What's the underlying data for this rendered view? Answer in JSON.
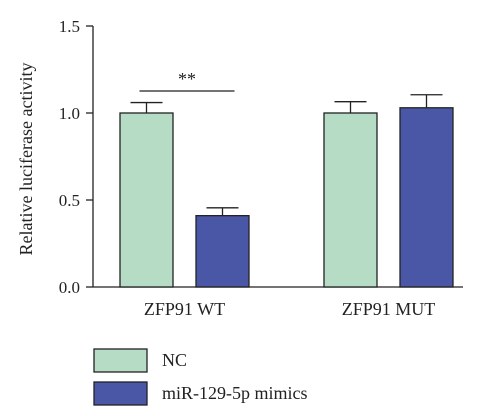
{
  "chart_data": {
    "type": "bar",
    "ylabel": "Relative luciferase activity",
    "xlabel": "",
    "ylim": [
      0,
      1.5
    ],
    "yticks": [
      "0.0",
      "0.5",
      "1.0",
      "1.5"
    ],
    "categories": [
      "ZFP91 WT",
      "ZFP91 MUT"
    ],
    "series": [
      {
        "name": "NC",
        "values": [
          1.0,
          1.0
        ],
        "errors": [
          0.06,
          0.065
        ],
        "color": "#b7dcc6"
      },
      {
        "name": "miR-129-5p mimics",
        "values": [
          0.41,
          1.03
        ],
        "errors": [
          0.045,
          0.075
        ],
        "color": "#4a56a6"
      }
    ],
    "significance": [
      {
        "category": "ZFP91 WT",
        "label": "**"
      }
    ],
    "legend_position": "bottom-left",
    "grid": false,
    "error_bars": true
  }
}
